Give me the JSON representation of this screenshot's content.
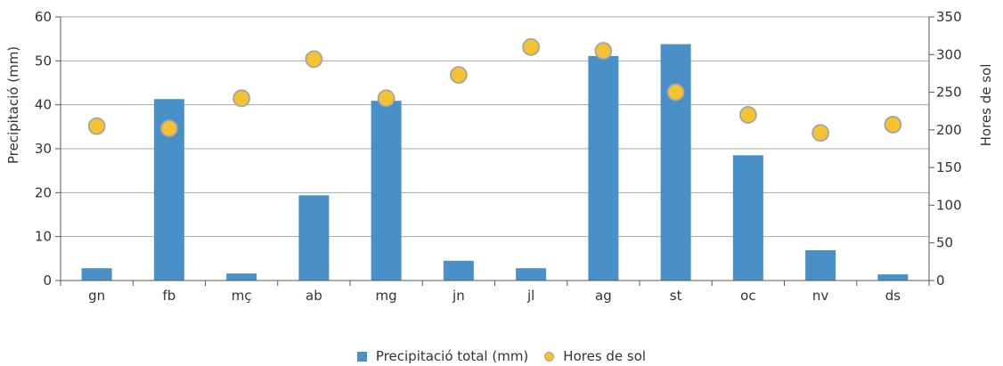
{
  "chart_data": {
    "type": "bar",
    "categories": [
      "gn",
      "fb",
      "mç",
      "ab",
      "mg",
      "jn",
      "jl",
      "ag",
      "st",
      "oc",
      "nv",
      "ds"
    ],
    "series": [
      {
        "name": "Precipitació total (mm)",
        "type": "bar",
        "axis": "left",
        "color": "#4a90c8",
        "values": [
          2.8,
          41.3,
          1.6,
          19.4,
          40.9,
          4.5,
          2.8,
          51.1,
          53.8,
          28.5,
          6.9,
          1.4
        ]
      },
      {
        "name": "Hores de sol",
        "type": "scatter",
        "axis": "right",
        "color": "#f5c231",
        "values": [
          205,
          202,
          242,
          294,
          242,
          273,
          310,
          305,
          250,
          220,
          196,
          207
        ]
      }
    ],
    "ylabel": "Precipitació (mm)",
    "y2label": "Hores de sol",
    "ylim": [
      0,
      60
    ],
    "y2lim": [
      0,
      350
    ],
    "yticks": [
      0,
      10,
      20,
      30,
      40,
      50,
      60
    ],
    "y2ticks": [
      0,
      50,
      100,
      150,
      200,
      250,
      300,
      350
    ],
    "grid": true,
    "legend_position": "bottom"
  }
}
